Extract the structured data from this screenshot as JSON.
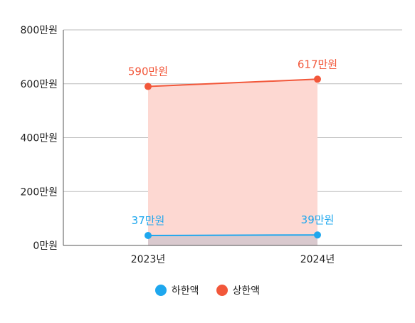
{
  "chart_data": {
    "type": "line",
    "categories": [
      "2023년",
      "2024년"
    ],
    "series": [
      {
        "name": "하한액",
        "values": [
          37,
          39
        ],
        "labels": [
          "37만원",
          "39만원"
        ],
        "color": "#1ea7ee"
      },
      {
        "name": "상한액",
        "values": [
          590,
          617
        ],
        "labels": [
          "590만원",
          "617만원"
        ],
        "color": "#f2573a"
      }
    ],
    "ylim": [
      0,
      800
    ],
    "yticks": [
      0,
      200,
      400,
      600,
      800
    ],
    "ytick_labels": [
      "0만원",
      "200만원",
      "400만원",
      "600만원",
      "800만원"
    ],
    "band_fill": "#fdd8d2",
    "lower_fill": "#d9c9ce",
    "grid": true,
    "legend_position": "bottom-center"
  }
}
